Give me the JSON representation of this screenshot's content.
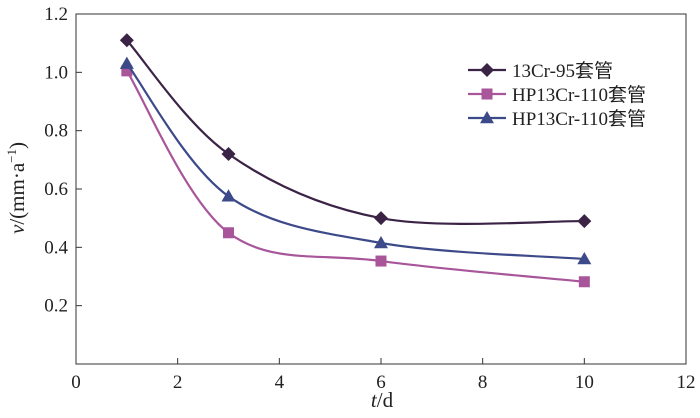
{
  "chart_data": {
    "type": "line",
    "title": "",
    "xlabel_var": "t",
    "xlabel_unit": "/d",
    "ylabel_var": "v",
    "ylabel_unit": "/(mm·a",
    "ylabel_sup": "−1",
    "ylabel_close": ")",
    "xlim": [
      0,
      12
    ],
    "ylim": [
      0,
      1.2
    ],
    "x_ticks": [
      0,
      2,
      4,
      6,
      8,
      10,
      12
    ],
    "x_tick_labels": [
      "0",
      "2",
      "4",
      "6",
      "8",
      "10",
      "12"
    ],
    "y_ticks": [
      0.2,
      0.4,
      0.6,
      0.8,
      1.0,
      1.2
    ],
    "y_tick_labels": [
      "0.2",
      "0.4",
      "0.6",
      "0.8",
      "1.0",
      "1.2"
    ],
    "grid": false,
    "legend_position": "top-right",
    "x": [
      1,
      3,
      6,
      10
    ],
    "series": [
      {
        "name": "13Cr-95套管",
        "values": [
          1.11,
          0.72,
          0.5,
          0.49
        ],
        "color": "#3b2346",
        "marker": "diamond"
      },
      {
        "name": "HP13Cr-110套管",
        "values": [
          1.005,
          0.45,
          0.353,
          0.282
        ],
        "color": "#a8559a",
        "marker": "square"
      },
      {
        "name": "HP13Cr-110套管",
        "values": [
          1.03,
          0.575,
          0.415,
          0.36
        ],
        "color": "#3d4a8a",
        "marker": "triangle"
      }
    ]
  }
}
